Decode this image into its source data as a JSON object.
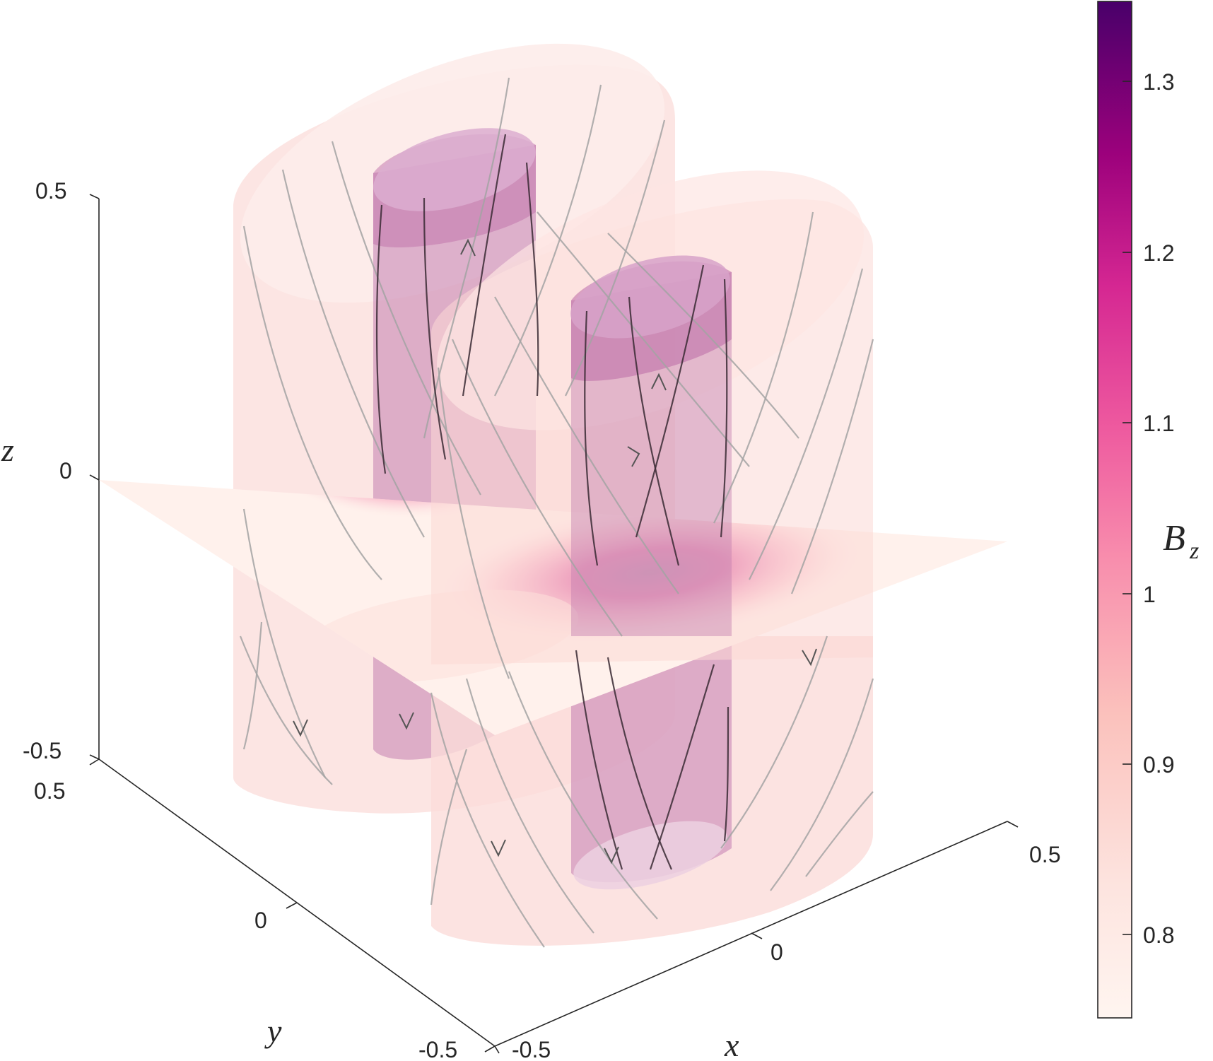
{
  "chart_data": {
    "type": "3d-surface",
    "axes": {
      "x": {
        "label": "x",
        "ticks": [
          "-0.5",
          "0",
          "0.5"
        ],
        "range": [
          -0.5,
          0.5
        ]
      },
      "y": {
        "label": "y",
        "ticks": [
          "-0.5",
          "0",
          "0.5"
        ],
        "range": [
          -0.5,
          0.5
        ]
      },
      "z": {
        "label": "z",
        "ticks": [
          "-0.5",
          "0",
          "0.5"
        ],
        "range": [
          -0.5,
          0.5
        ]
      }
    },
    "colorbar": {
      "label_main": "B",
      "label_sub": "z",
      "ticks": [
        "0.8",
        "0.9",
        "1",
        "1.1",
        "1.2",
        "1.3"
      ],
      "tick_values": [
        0.8,
        0.9,
        1.0,
        1.1,
        1.2,
        1.3
      ],
      "range": [
        0.75,
        1.345
      ],
      "colors": [
        "#fff5f0",
        "#fcd6d0",
        "#f9a9b8",
        "#f06aa4",
        "#dd3497",
        "#ae017e",
        "#7a0177",
        "#49006a"
      ]
    },
    "objects": {
      "outer_tube_color": "#fbd9d6",
      "inner_tube_color": "#c47fb0",
      "fieldline_color": "#9a9a9a"
    }
  }
}
